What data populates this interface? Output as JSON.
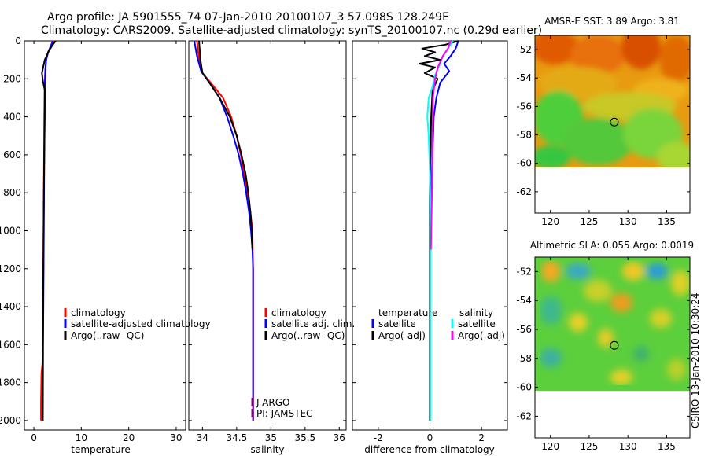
{
  "header": {
    "title_line1": "Argo profile: JA 5901555_74 07-Jan-2010 20100107_3 57.098S 128.249E",
    "title_line2": "Climatology: CARS2009. Satellite-adjusted climatology: synTS_20100107.nc (0.29d earlier)"
  },
  "footer_stamp": "CSIRO 13-Jan-2010 10:30:24",
  "colors": {
    "climatology": "#ff0000",
    "satellite": "#0000ff",
    "argo": "#000000",
    "satellite_salinity": "#00ffff",
    "argo_salinity_adj": "#ff00ff",
    "platform": "#7f007f"
  },
  "chart_data": [
    {
      "type": "line",
      "id": "temperature",
      "xlabel": "temperature",
      "ylabel": "",
      "xlim": [
        -2,
        32
      ],
      "ylim": [
        2050,
        0
      ],
      "xticks": [
        0,
        10,
        20,
        30
      ],
      "yticks": [
        0,
        200,
        400,
        600,
        800,
        1000,
        1200,
        1400,
        1600,
        1800,
        2000
      ],
      "series": [
        {
          "name": "climatology",
          "color": "#ff0000",
          "x": [
            4.3,
            3.6,
            3.0,
            2.6,
            2.4,
            2.3,
            2.2,
            2.15,
            2.1,
            2.05,
            2.0,
            1.95,
            1.9,
            1.8,
            1.6,
            1.5,
            1.5
          ],
          "y": [
            0,
            30,
            60,
            100,
            160,
            250,
            400,
            600,
            800,
            1000,
            1200,
            1400,
            1600,
            1700,
            1750,
            1900,
            2000
          ]
        },
        {
          "name": "satellite-adjusted climatology",
          "color": "#0000ff",
          "x": [
            4.0,
            3.5,
            3.0,
            2.6,
            2.4,
            2.3,
            2.25,
            2.2,
            2.15,
            2.1,
            2.05,
            2.0,
            1.95,
            1.9
          ],
          "y": [
            0,
            30,
            60,
            100,
            160,
            250,
            400,
            600,
            800,
            1000,
            1200,
            1400,
            1600,
            2000
          ]
        },
        {
          "name": "Argo(..raw -QC)",
          "color": "#000000",
          "x": [
            4.6,
            4.0,
            3.2,
            2.3,
            1.7,
            1.9,
            2.3,
            2.3,
            2.3,
            2.2,
            2.1,
            2.05,
            2.0,
            1.95,
            1.9,
            1.85
          ],
          "y": [
            0,
            20,
            50,
            100,
            170,
            210,
            260,
            320,
            400,
            600,
            800,
            1000,
            1200,
            1400,
            1600,
            2000
          ]
        }
      ],
      "legend": [
        "climatology",
        "satellite-adjusted climatology",
        "Argo(..raw -QC)"
      ]
    },
    {
      "type": "line",
      "id": "salinity",
      "xlabel": "salinity",
      "ylabel": "",
      "xlim": [
        33.8,
        36.1
      ],
      "ylim": [
        2050,
        0
      ],
      "xticks": [
        34,
        34.5,
        35,
        35.5,
        36
      ],
      "xticklabels": [
        "34",
        "34.5",
        "35",
        "35.5",
        "36"
      ],
      "series": [
        {
          "name": "climatology",
          "color": "#ff0000",
          "x": [
            33.92,
            33.95,
            34.0,
            34.12,
            34.3,
            34.42,
            34.5,
            34.56,
            34.61,
            34.66,
            34.7,
            34.73,
            34.74,
            34.74,
            34.74
          ],
          "y": [
            0,
            100,
            170,
            220,
            300,
            400,
            500,
            600,
            700,
            800,
            900,
            1000,
            1200,
            1600,
            2000
          ]
        },
        {
          "name": "satellite adj. clim.",
          "color": "#0000ff",
          "x": [
            33.88,
            33.92,
            33.98,
            34.1,
            34.25,
            34.36,
            34.45,
            34.53,
            34.59,
            34.64,
            34.68,
            34.71,
            34.73,
            34.74,
            34.74,
            34.74
          ],
          "y": [
            0,
            80,
            160,
            220,
            300,
            400,
            500,
            600,
            700,
            800,
            900,
            1000,
            1100,
            1200,
            1600,
            2000
          ]
        },
        {
          "name": "Argo(..raw -QC)",
          "color": "#000000",
          "x": [
            33.95,
            33.97,
            34.0,
            34.1,
            34.25,
            34.4,
            34.5,
            34.57,
            34.63,
            34.67,
            34.7,
            34.72,
            34.72,
            34.73
          ],
          "y": [
            0,
            100,
            170,
            220,
            300,
            400,
            500,
            600,
            700,
            800,
            900,
            1000,
            1040,
            1100
          ]
        }
      ],
      "legend": [
        "climatology",
        "satellite adj. clim.",
        "Argo(..raw -QC)"
      ],
      "annotations": [
        "J-ARGO",
        "PI: JAMSTEC"
      ]
    },
    {
      "type": "line",
      "id": "difference",
      "xlabel": "difference from climatology",
      "ylabel": "",
      "xlim": [
        -3.0,
        3.0
      ],
      "ylim": [
        2050,
        0
      ],
      "xticks": [
        -2,
        0,
        2
      ],
      "xticklabels": [
        "-2",
        "0",
        "2"
      ],
      "series": [
        {
          "name": "temperature satellite",
          "color": "#0000ff",
          "x": [
            1.1,
            1.0,
            0.8,
            0.55,
            0.75,
            0.4,
            0.25,
            0.15,
            0.1,
            0.05,
            0.03,
            0.02,
            0.02
          ],
          "y": [
            0,
            40,
            80,
            120,
            160,
            220,
            300,
            400,
            600,
            800,
            1000,
            1400,
            2000
          ]
        },
        {
          "name": "temperature Argo(-adj)",
          "color": "#000000",
          "x": [
            1.1,
            0.6,
            -0.3,
            0.2,
            -0.2,
            0.4,
            -0.4,
            0.2,
            -0.2,
            0.3,
            0.1,
            0.05,
            0.0,
            0.0
          ],
          "y": [
            0,
            20,
            40,
            60,
            80,
            100,
            120,
            140,
            170,
            200,
            260,
            400,
            800,
            2000
          ]
        },
        {
          "name": "salinity satellite",
          "color": "#00ffff",
          "x": [
            0.9,
            0.7,
            0.5,
            0.4,
            0.2,
            0.1,
            -0.05,
            -0.1,
            -0.05,
            0.0,
            0.03,
            0.03,
            0.03
          ],
          "y": [
            0,
            40,
            80,
            120,
            180,
            240,
            300,
            400,
            500,
            700,
            1000,
            1400,
            2000
          ]
        },
        {
          "name": "salinity Argo(-adj)",
          "color": "#ff00ff",
          "x": [
            0.8,
            0.7,
            0.5,
            0.3,
            0.2,
            0.12,
            0.1,
            0.08,
            0.05,
            0.04
          ],
          "y": [
            0,
            40,
            80,
            140,
            200,
            300,
            500,
            800,
            1000,
            1100
          ]
        }
      ],
      "legend_headers": [
        "temperature",
        "salinity"
      ],
      "legend": [
        "satellite",
        "Argo(-adj)",
        "satellite",
        "Argo(-adj)"
      ]
    },
    {
      "type": "heatmap",
      "id": "sst_map",
      "title": "AMSR-E SST: 3.89 Argo: 3.81",
      "xlim": [
        118,
        138
      ],
      "ylim": [
        -63.5,
        -51
      ],
      "xticks": [
        120,
        125,
        130,
        135
      ],
      "yticks": [
        -52,
        -54,
        -56,
        -58,
        -60,
        -62
      ],
      "data_extent_lat": [
        -60,
        -51
      ],
      "marker": {
        "lon": 128.249,
        "lat": -57.098
      }
    },
    {
      "type": "heatmap",
      "id": "sla_map",
      "title": "Altimetric SLA: 0.055 Argo: 0.0019",
      "xlim": [
        118,
        138
      ],
      "ylim": [
        -63.5,
        -51
      ],
      "xticks": [
        120,
        125,
        130,
        135
      ],
      "yticks": [
        -52,
        -54,
        -56,
        -58,
        -60,
        -62
      ],
      "data_extent_lat": [
        -60,
        -51
      ],
      "marker": {
        "lon": 128.249,
        "lat": -57.098
      }
    }
  ]
}
